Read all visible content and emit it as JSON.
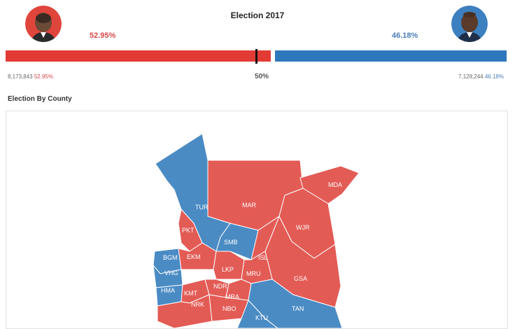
{
  "header": {
    "title": "Election 2017",
    "left_candidate": {
      "percent": "52.95%",
      "votes": "8,173,843",
      "votes_percent": "52.95%",
      "color": "#e23b35"
    },
    "right_candidate": {
      "percent": "46.18%",
      "votes": "7,128,244",
      "votes_percent": "46.18%",
      "color": "#2d77bb"
    },
    "midpoint_label": "50%"
  },
  "section": {
    "title": "Election By County"
  },
  "map": {
    "counties": [
      {
        "code": "TUR",
        "winner": "blue"
      },
      {
        "code": "MAR",
        "winner": "red"
      },
      {
        "code": "MDA",
        "winner": "red"
      },
      {
        "code": "WJR",
        "winner": "red"
      },
      {
        "code": "PKT",
        "winner": "red"
      },
      {
        "code": "SMB",
        "winner": "blue"
      },
      {
        "code": "ISL",
        "winner": "red"
      },
      {
        "code": "BGM",
        "winner": "blue"
      },
      {
        "code": "EKM",
        "winner": "red"
      },
      {
        "code": "LKP",
        "winner": "red"
      },
      {
        "code": "MRU",
        "winner": "red"
      },
      {
        "code": "VHG",
        "winner": "blue"
      },
      {
        "code": "GSA",
        "winner": "red"
      },
      {
        "code": "HMA",
        "winner": "blue"
      },
      {
        "code": "KMT",
        "winner": "red"
      },
      {
        "code": "NDR",
        "winner": "red"
      },
      {
        "code": "MRA",
        "winner": "red"
      },
      {
        "code": "NRK",
        "winner": "red"
      },
      {
        "code": "NBO",
        "winner": "red"
      },
      {
        "code": "TAN",
        "winner": "blue"
      },
      {
        "code": "KTU",
        "winner": "blue"
      }
    ]
  }
}
